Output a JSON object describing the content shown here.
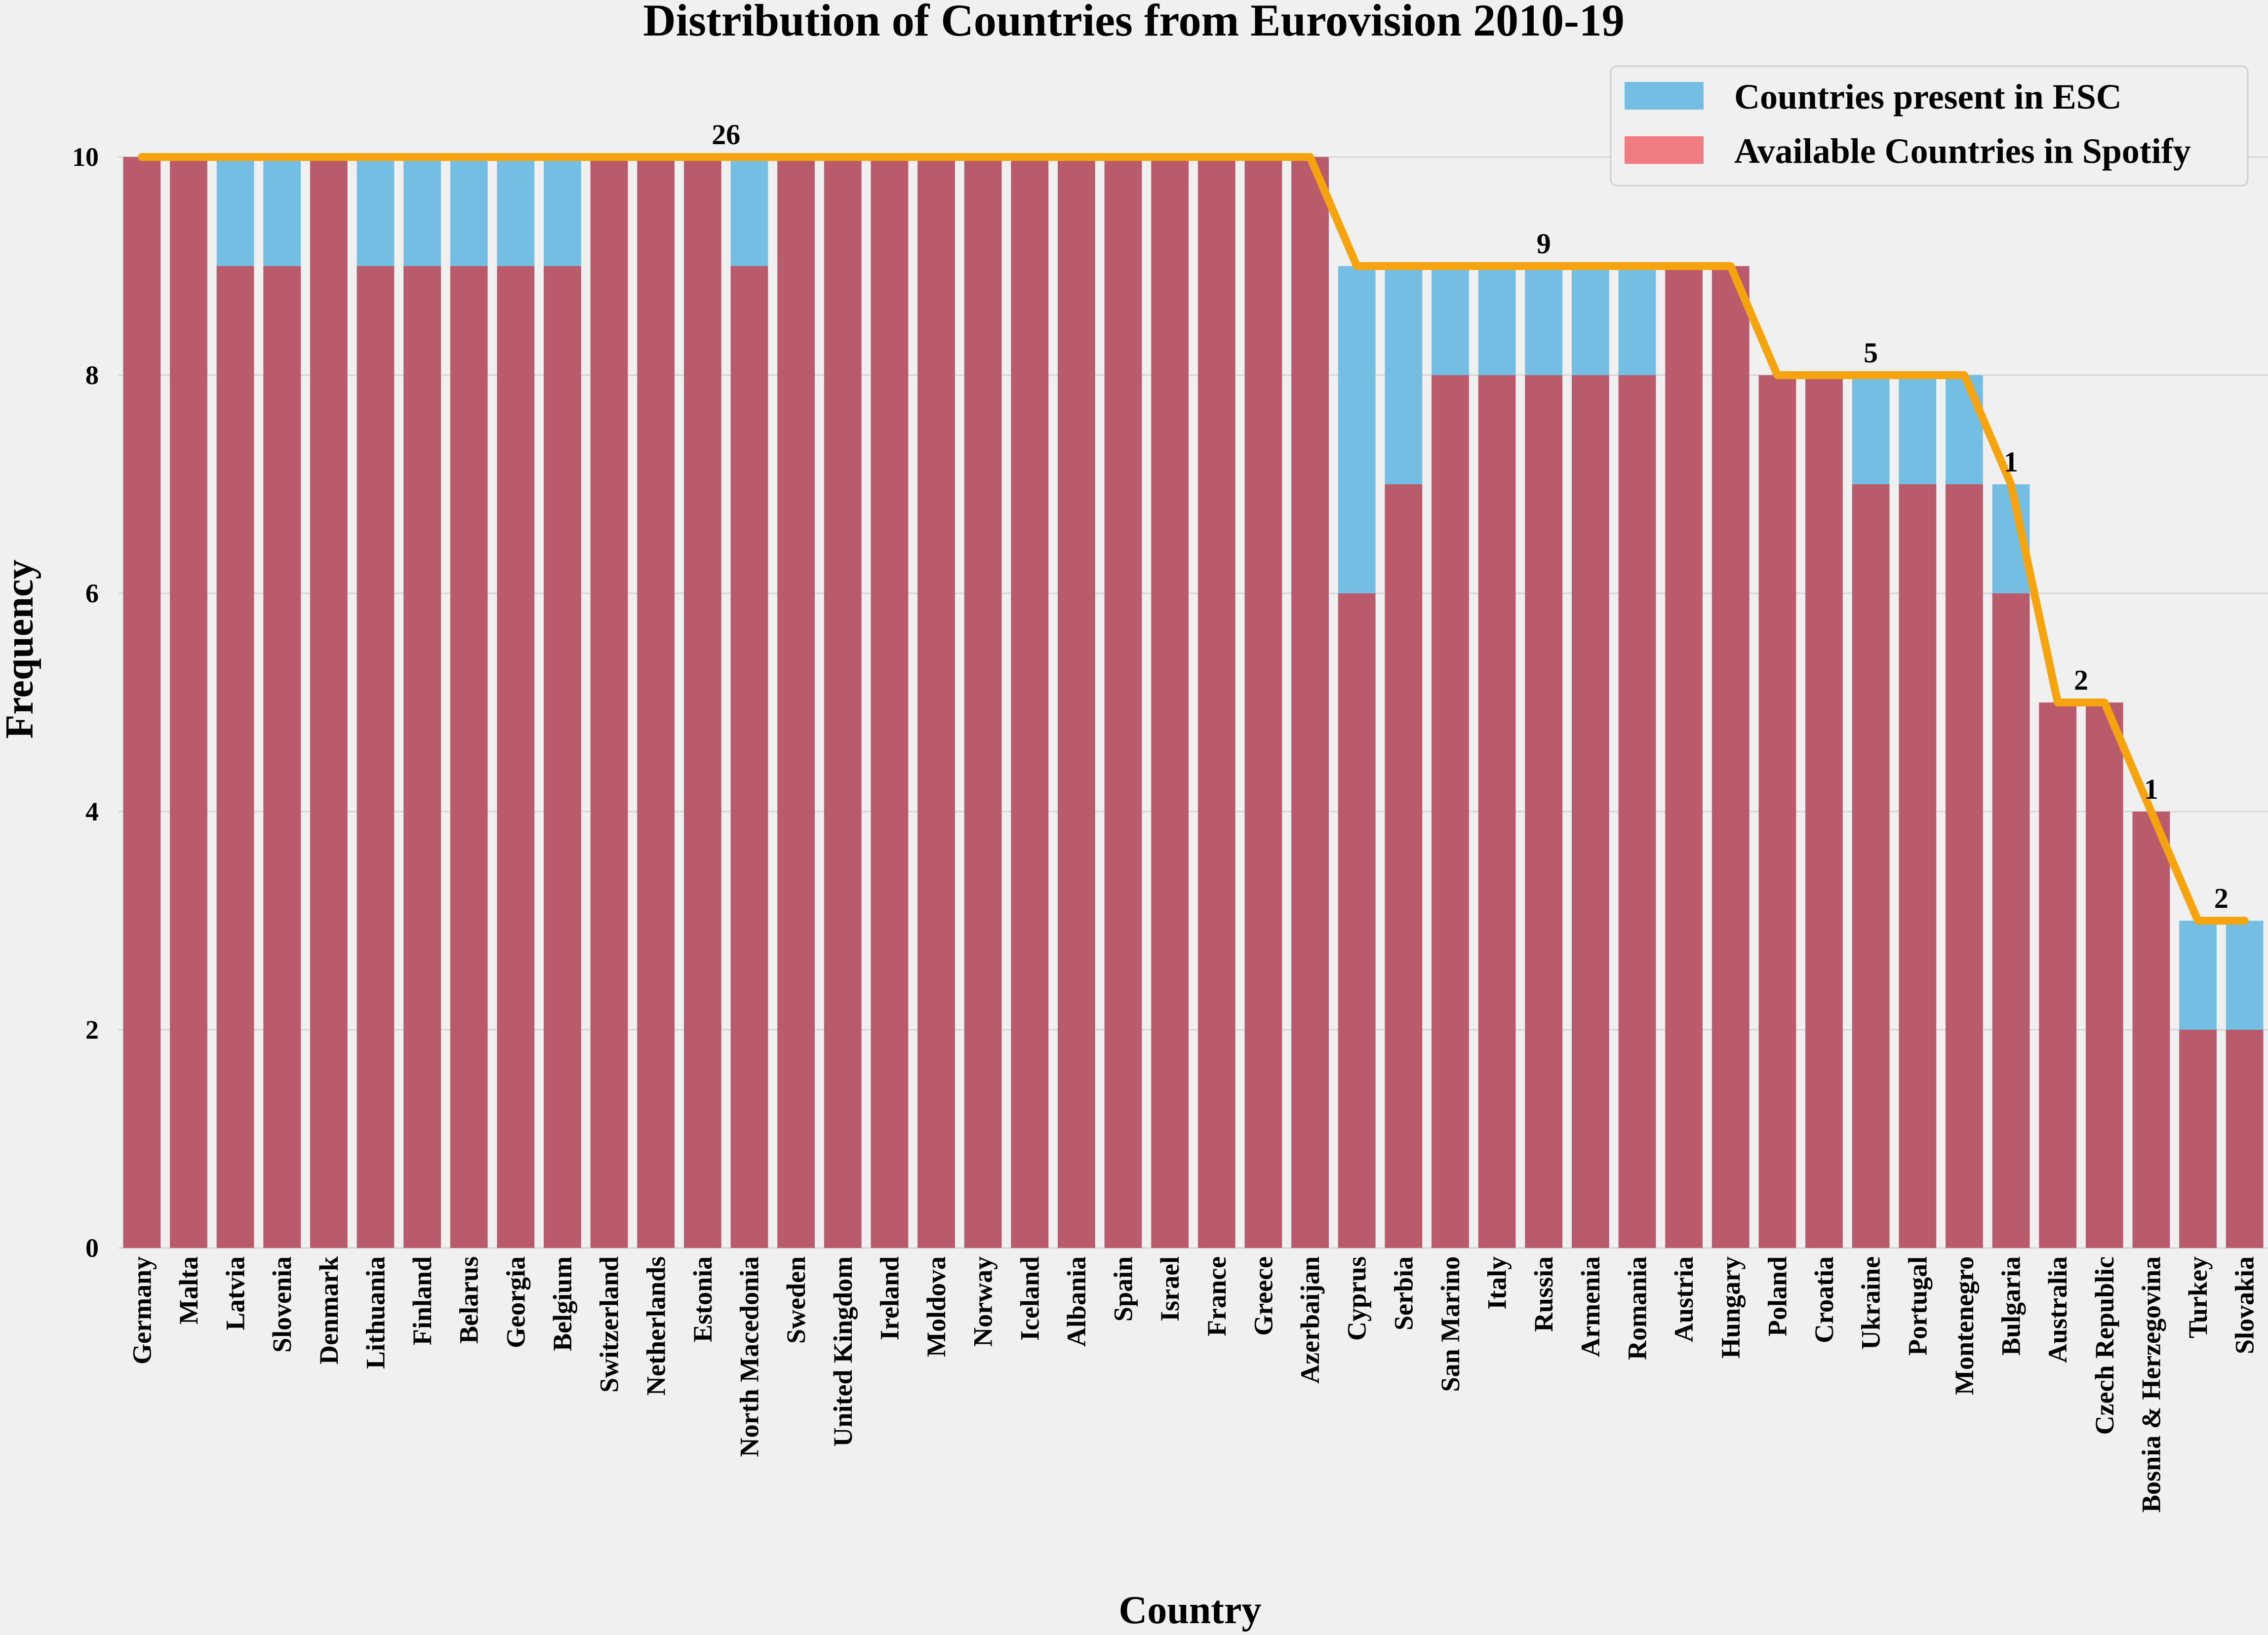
{
  "chart_data": {
    "type": "bar",
    "title": "Distribution of Countries from Eurovision 2010-19",
    "xlabel": "Country",
    "ylabel": "Frequency",
    "ylim": [
      0,
      10
    ],
    "yticks": [
      0,
      2,
      4,
      6,
      8,
      10
    ],
    "grid": true,
    "legend_placement": "top-right",
    "categories": [
      "Germany",
      "Malta",
      "Latvia",
      "Slovenia",
      "Denmark",
      "Lithuania",
      "Finland",
      "Belarus",
      "Georgia",
      "Belgium",
      "Switzerland",
      "Netherlands",
      "Estonia",
      "North Macedonia",
      "Sweden",
      "United Kingdom",
      "Ireland",
      "Moldova",
      "Norway",
      "Iceland",
      "Albania",
      "Spain",
      "Israel",
      "France",
      "Greece",
      "Azerbaijan",
      "Cyprus",
      "Serbia",
      "San Marino",
      "Italy",
      "Russia",
      "Armenia",
      "Romania",
      "Austria",
      "Hungary",
      "Poland",
      "Croatia",
      "Ukraine",
      "Portugal",
      "Montenegro",
      "Bulgaria",
      "Australia",
      "Czech Republic",
      "Bosnia & Herzegovina",
      "Turkey",
      "Slovakia"
    ],
    "series": [
      {
        "name": "Countries present in ESC",
        "color": "#74bde3",
        "values": [
          10,
          10,
          10,
          10,
          10,
          10,
          10,
          10,
          10,
          10,
          10,
          10,
          10,
          10,
          10,
          10,
          10,
          10,
          10,
          10,
          10,
          10,
          10,
          10,
          10,
          10,
          9,
          9,
          9,
          9,
          9,
          9,
          9,
          9,
          9,
          8,
          8,
          8,
          8,
          8,
          7,
          5,
          5,
          4,
          3,
          3
        ]
      },
      {
        "name": "Available Countries in Spotify",
        "color": "#ba5b6c",
        "legend_color": "#f07b80",
        "values": [
          10,
          10,
          9,
          9,
          10,
          9,
          9,
          9,
          9,
          9,
          10,
          10,
          10,
          9,
          10,
          10,
          10,
          10,
          10,
          10,
          10,
          10,
          10,
          10,
          10,
          10,
          6,
          7,
          8,
          8,
          8,
          8,
          8,
          9,
          9,
          8,
          8,
          7,
          7,
          7,
          6,
          5,
          5,
          4,
          2,
          2
        ]
      }
    ],
    "step_line": {
      "color": "#f5a30e",
      "annotations": [
        {
          "label": "26",
          "category_index": 12.5,
          "value": 10
        },
        {
          "label": "9",
          "category_index": 30,
          "value": 9
        },
        {
          "label": "5",
          "category_index": 37,
          "value": 8
        },
        {
          "label": "1",
          "category_index": 40,
          "value": 7
        },
        {
          "label": "2",
          "category_index": 41.5,
          "value": 5
        },
        {
          "label": "1",
          "category_index": 43,
          "value": 4
        },
        {
          "label": "2",
          "category_index": 44.5,
          "value": 3
        }
      ]
    }
  }
}
